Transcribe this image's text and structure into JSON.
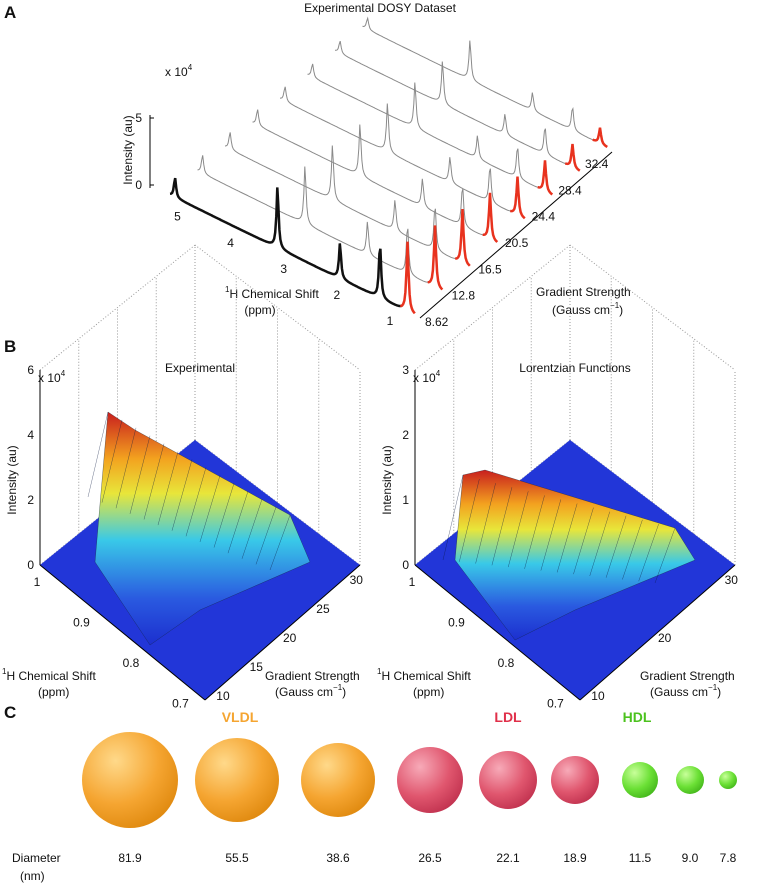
{
  "panel_a": {
    "label": "A",
    "title": "Experimental DOSY Dataset",
    "scale": {
      "base": "x 10",
      "exp": "4"
    },
    "y_label": "Intensity (au)",
    "y_ticks": [
      "0",
      "5"
    ],
    "x_label": {
      "sup": "1",
      "main": "H Chemical Shift",
      "unit": "(ppm)"
    },
    "x_ticks": [
      "5",
      "4",
      "3",
      "2",
      "1"
    ],
    "z_label": {
      "main": "Gradient Strength",
      "unit": "(Gauss cm",
      "unit_sup": "−1",
      "unit_end": ")"
    },
    "z_ticks": [
      "8.62",
      "12.8",
      "16.5",
      "20.5",
      "24.4",
      "28.4",
      "32.4"
    ]
  },
  "panel_b": {
    "label": "B",
    "plots": [
      {
        "title": "Experimental",
        "scale": {
          "base": "x 10",
          "exp": "4"
        },
        "y_label": "Intensity (au)",
        "y_ticks": [
          "0",
          "2",
          "4",
          "6"
        ],
        "x_label": {
          "sup": "1",
          "main": "H Chemical Shift",
          "unit": "(ppm)"
        },
        "x_ticks": [
          "1",
          "0.9",
          "0.8",
          "0.7"
        ],
        "z_label": {
          "main": "Gradient Strength",
          "unit": "(Gauss cm",
          "unit_sup": "−1",
          "unit_end": ")"
        },
        "z_ticks": [
          "10",
          "15",
          "20",
          "25",
          "30"
        ]
      },
      {
        "title": "Lorentzian Functions",
        "scale": {
          "base": "x 10",
          "exp": "4"
        },
        "y_label": "Intensity (au)",
        "y_ticks": [
          "0",
          "1",
          "2",
          "3"
        ],
        "x_label": {
          "sup": "1",
          "main": "H Chemical Shift",
          "unit": "(ppm)"
        },
        "x_ticks": [
          "1",
          "0.9",
          "0.8",
          "0.7"
        ],
        "z_label": {
          "main": "Gradient Strength",
          "unit": "(Gauss cm",
          "unit_sup": "−1",
          "unit_end": ")"
        },
        "z_ticks": [
          "10",
          "20",
          "30"
        ]
      }
    ]
  },
  "panel_c": {
    "label": "C",
    "groups": [
      "VLDL",
      "LDL",
      "HDL"
    ],
    "row_label": "Diameter",
    "row_unit": "(nm)",
    "diameters": [
      "81.9",
      "55.5",
      "38.6",
      "26.5",
      "22.1",
      "18.9",
      "11.5",
      "9.0",
      "7.8"
    ]
  }
}
